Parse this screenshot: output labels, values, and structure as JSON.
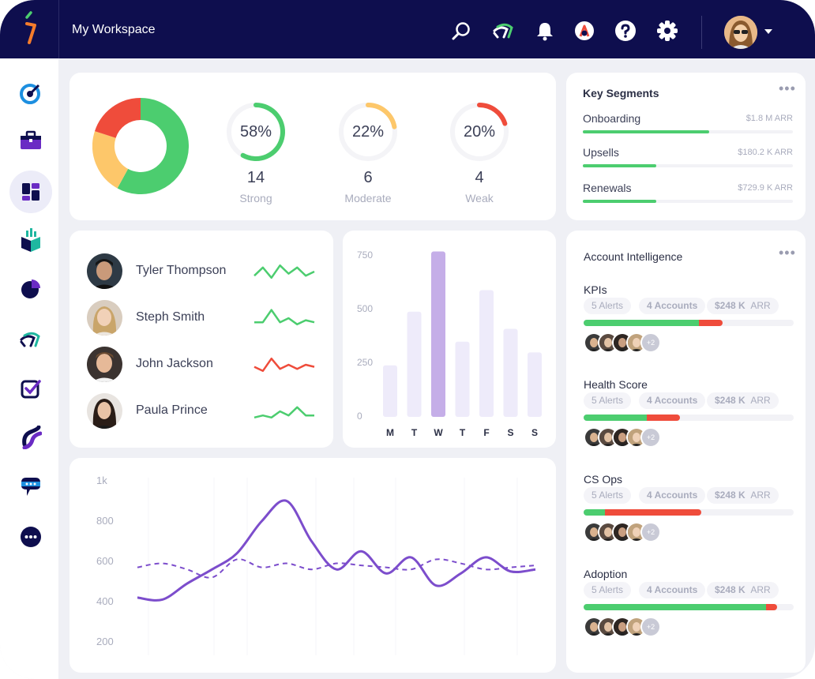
{
  "header": {
    "workspace_title": "My Workspace",
    "icons": [
      "search-icon",
      "stream-icon",
      "bell-icon",
      "compass-icon",
      "help-icon",
      "gear-icon"
    ]
  },
  "sidebar": {
    "items": [
      "target-icon",
      "briefcase-icon",
      "dashboard-icon",
      "boxes-icon",
      "pie-chart-icon",
      "stream-icon",
      "checklist-icon",
      "waves-icon",
      "chat-icon",
      "more-icon"
    ],
    "active": "dashboard-icon"
  },
  "health": {
    "donut": [
      {
        "label": "Strong",
        "fraction": 0.58,
        "color": "#4ccd6f"
      },
      {
        "label": "Moderate",
        "fraction": 0.22,
        "color": "#fdc76a"
      },
      {
        "label": "Weak",
        "fraction": 0.2,
        "color": "#ef4c3b"
      }
    ],
    "stats": [
      {
        "percent": "58%",
        "count": "14",
        "label": "Strong",
        "fraction": 0.58,
        "color": "#4ccd6f"
      },
      {
        "percent": "22%",
        "count": "6",
        "label": "Moderate",
        "fraction": 0.22,
        "color": "#fdc76a"
      },
      {
        "percent": "20%",
        "count": "4",
        "label": "Weak",
        "fraction": 0.2,
        "color": "#ef4c3b"
      }
    ]
  },
  "segments": {
    "title": "Key Segments",
    "items": [
      {
        "name": "Onboarding",
        "value": "$1.8 M ARR",
        "fraction": 0.6
      },
      {
        "name": "Upsells",
        "value": "$180.2 K ARR",
        "fraction": 0.35
      },
      {
        "name": "Renewals",
        "value": "$729.9 K ARR",
        "fraction": 0.35
      }
    ]
  },
  "people": [
    {
      "name": "Tyler Thompson",
      "trend_color": "#4ccd6f",
      "trend": [
        3,
        7,
        2,
        8,
        4,
        7,
        3,
        5
      ]
    },
    {
      "name": "Steph Smith",
      "trend_color": "#4ccd6f",
      "trend": [
        3,
        3,
        9,
        3,
        5,
        2,
        4,
        3
      ]
    },
    {
      "name": "John Jackson",
      "trend_color": "#ef4c3b",
      "trend": [
        4,
        2,
        8,
        3,
        5,
        3,
        5,
        4
      ]
    },
    {
      "name": "Paula Prince",
      "trend_color": "#4ccd6f",
      "trend": [
        2,
        3,
        2,
        5,
        3,
        7,
        3,
        3
      ]
    }
  ],
  "weekly_chart": {
    "chart_data": {
      "type": "bar",
      "categories": [
        "M",
        "T",
        "W",
        "T",
        "F",
        "S",
        "S"
      ],
      "values": [
        240,
        490,
        770,
        350,
        590,
        410,
        300
      ],
      "highlight_index": 2,
      "y_ticks": [
        "750",
        "500",
        "250",
        "0"
      ],
      "ylim": [
        0,
        800
      ]
    }
  },
  "line_chart": {
    "chart_data": {
      "type": "line",
      "y_ticks": [
        "1k",
        "800",
        "600",
        "400",
        "200"
      ],
      "ylim": [
        150,
        1050
      ],
      "series": [
        {
          "style": "solid",
          "values": [
            420,
            410,
            490,
            560,
            640,
            800,
            900,
            700,
            560,
            650,
            540,
            620,
            480,
            540,
            620,
            550,
            560
          ]
        },
        {
          "style": "dashed",
          "values": [
            570,
            590,
            560,
            520,
            610,
            570,
            590,
            560,
            590,
            580,
            570,
            560,
            610,
            590,
            560,
            570,
            580
          ]
        }
      ]
    }
  },
  "account_intelligence": {
    "title": "Account Intelligence",
    "kpis": [
      {
        "name": "KPIs",
        "alerts": "5 Alerts",
        "accounts": "4 Accounts",
        "arr_value": "$248 K",
        "arr_unit": "ARR",
        "green": 0.55,
        "red": 0.11,
        "more": "+2"
      },
      {
        "name": "Health Score",
        "alerts": "5 Alerts",
        "accounts": "4 Accounts",
        "arr_value": "$248 K",
        "arr_unit": "ARR",
        "green": 0.3,
        "red": 0.16,
        "more": "+2"
      },
      {
        "name": "CS Ops",
        "alerts": "5 Alerts",
        "accounts": "4 Accounts",
        "arr_value": "$248 K",
        "arr_unit": "ARR",
        "green": 0.1,
        "red": 0.46,
        "more": "+2"
      },
      {
        "name": "Adoption",
        "alerts": "5 Alerts",
        "accounts": "4 Accounts",
        "arr_value": "$248 K",
        "arr_unit": "ARR",
        "green": 0.87,
        "red": 0.05,
        "more": "+2"
      }
    ]
  }
}
